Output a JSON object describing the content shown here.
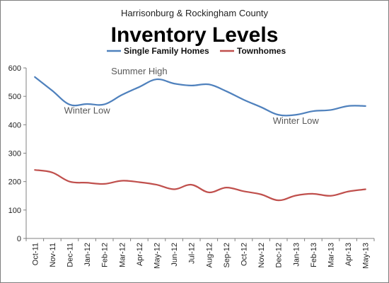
{
  "chart_data": {
    "type": "line",
    "subtitle": "Harrisonburg  & Rockingham County",
    "title": "Inventory Levels",
    "categories": [
      "Oct-11",
      "Nov-11",
      "Dec-11",
      "Jan-12",
      "Feb-12",
      "Mar-12",
      "Apr-12",
      "May-12",
      "Jun-12",
      "Jul-12",
      "Aug-12",
      "Sep-12",
      "Oct-12",
      "Nov-12",
      "Dec-12",
      "Jan-13",
      "Feb-13",
      "Mar-13",
      "Apr-13",
      "May-13"
    ],
    "series": [
      {
        "name": "Single Family Homes",
        "color": "#4f81bd",
        "values": [
          568,
          520,
          471,
          473,
          472,
          505,
          533,
          560,
          545,
          538,
          542,
          518,
          488,
          462,
          435,
          435,
          448,
          452,
          466,
          466
        ]
      },
      {
        "name": "Townhomes",
        "color": "#c0504d",
        "values": [
          241,
          232,
          200,
          196,
          192,
          203,
          198,
          189,
          173,
          189,
          162,
          179,
          166,
          155,
          134,
          151,
          157,
          150,
          165,
          173
        ]
      }
    ],
    "ylim": [
      0,
      600
    ],
    "yticks": [
      0,
      100,
      200,
      300,
      400,
      500,
      600
    ],
    "grid": false,
    "legend_position": "top",
    "annotations": [
      {
        "text": "Winter Low",
        "x": "Jan-12",
        "y": 440
      },
      {
        "text": "Summer High",
        "x": "Apr-12",
        "y": 578
      },
      {
        "text": "Winter Low",
        "x": "Jan-13",
        "y": 403
      }
    ]
  }
}
